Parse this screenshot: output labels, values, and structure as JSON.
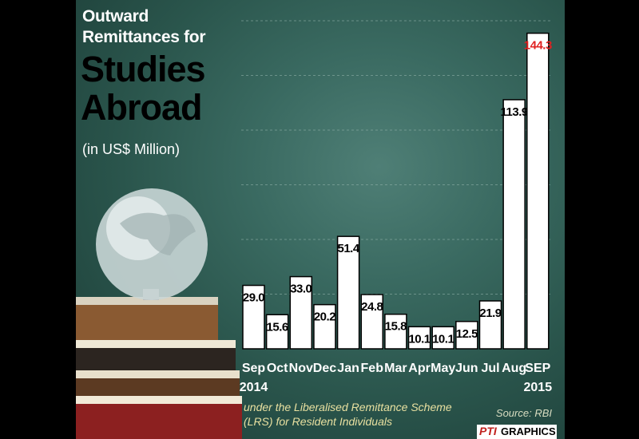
{
  "title": {
    "line1": "Outward",
    "line2": "Remittances for",
    "line3": "Studies",
    "line4": "Abroad",
    "unit": "(in US$ Million)"
  },
  "footnote": {
    "line1": "under the Liberalised Remittance Scheme",
    "line2": "(LRS) for Resident Individuals"
  },
  "source": "Source: RBI",
  "logo": {
    "pti": "PTI",
    "graphics": "GRAPHICS"
  },
  "year_start": "2014",
  "year_end": "2015",
  "colors": {
    "bar": "#ffffff",
    "bar_border": "#000000",
    "highlight": "#e02020",
    "board": "#3a6a61"
  },
  "chart_data": {
    "type": "bar",
    "categories": [
      "Sep",
      "Oct",
      "Nov",
      "Dec",
      "Jan",
      "Feb",
      "Mar",
      "Apr",
      "May",
      "Jun",
      "Jul",
      "Aug",
      "SEP"
    ],
    "values": [
      29.0,
      15.6,
      33.0,
      20.2,
      51.4,
      24.8,
      15.8,
      10.1,
      10.1,
      12.5,
      21.9,
      113.9,
      144.3
    ],
    "value_labels": [
      "29.0",
      "15.6",
      "33.0",
      "20.2",
      "51.4",
      "24.8",
      "15.8",
      "10.1",
      "10.1",
      "12.5",
      "21.9",
      "113.9",
      "144.3"
    ],
    "highlight_index": 12,
    "ylim": [
      0,
      150
    ],
    "grid": true
  }
}
